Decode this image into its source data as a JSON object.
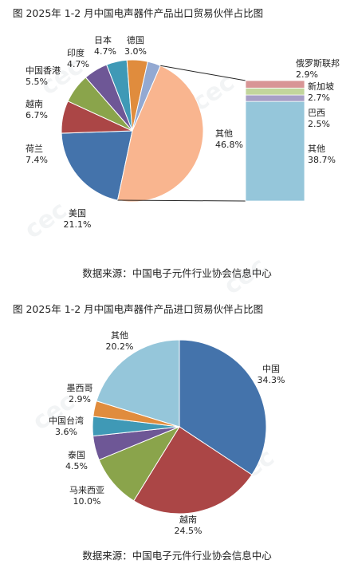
{
  "chart_data": [
    {
      "type": "pie",
      "title": "图    2025年 1-2 月中国电声器件产品出口贸易伙伴占比图",
      "source": "数据来源：中国电子元件行业协会信息中心",
      "slices": [
        {
          "label": "美国",
          "value": 21.1,
          "display": "21.1%",
          "color": "#4473ab"
        },
        {
          "label": "荷兰",
          "value": 7.4,
          "display": "7.4%",
          "color": "#ab4646"
        },
        {
          "label": "越南",
          "value": 6.7,
          "display": "6.7%",
          "color": "#8aa44b"
        },
        {
          "label": "中国香港",
          "value": 5.5,
          "display": "5.5%",
          "color": "#6e5796"
        },
        {
          "label": "印度",
          "value": 4.7,
          "display": "4.7%",
          "color": "#3f99b6"
        },
        {
          "label": "日本",
          "value": 4.7,
          "display": "4.7%",
          "color": "#e08c3d"
        },
        {
          "label": "德国",
          "value": 3.0,
          "display": "3.0%",
          "color": "#93a9d2"
        },
        {
          "label": "其他",
          "value": 46.8,
          "display": "46.8%",
          "color": "#f9b58f"
        }
      ],
      "breakdown_of": "其他",
      "breakdown": [
        {
          "label": "其他",
          "value": 38.7,
          "display": "38.7%",
          "color": "#95c6da"
        },
        {
          "label": "巴西",
          "value": 2.5,
          "display": "2.5%",
          "color": "#a79fc6"
        },
        {
          "label": "新加坡",
          "value": 2.7,
          "display": "2.7%",
          "color": "#c2d59c"
        },
        {
          "label": "俄罗斯联邦",
          "value": 2.9,
          "display": "2.9%",
          "color": "#d89595"
        }
      ]
    },
    {
      "type": "pie",
      "title": "图    2025年 1-2 月中国电声器件产品进口贸易伙伴占比图",
      "source": "数据来源：中国电子元件行业协会信息中心",
      "slices": [
        {
          "label": "中国",
          "value": 34.3,
          "display": "34.3%",
          "color": "#4473ab"
        },
        {
          "label": "越南",
          "value": 24.5,
          "display": "24.5%",
          "color": "#ab4646"
        },
        {
          "label": "马来西亚",
          "value": 10.0,
          "display": "10.0%",
          "color": "#8aa44b"
        },
        {
          "label": "泰国",
          "value": 4.5,
          "display": "4.5%",
          "color": "#6e5796"
        },
        {
          "label": "中国台湾",
          "value": 3.6,
          "display": "3.6%",
          "color": "#3f99b6"
        },
        {
          "label": "墨西哥",
          "value": 2.9,
          "display": "2.9%",
          "color": "#e08c3d"
        },
        {
          "label": "其他",
          "value": 20.2,
          "display": "20.2%",
          "color": "#95c6da"
        }
      ]
    }
  ]
}
